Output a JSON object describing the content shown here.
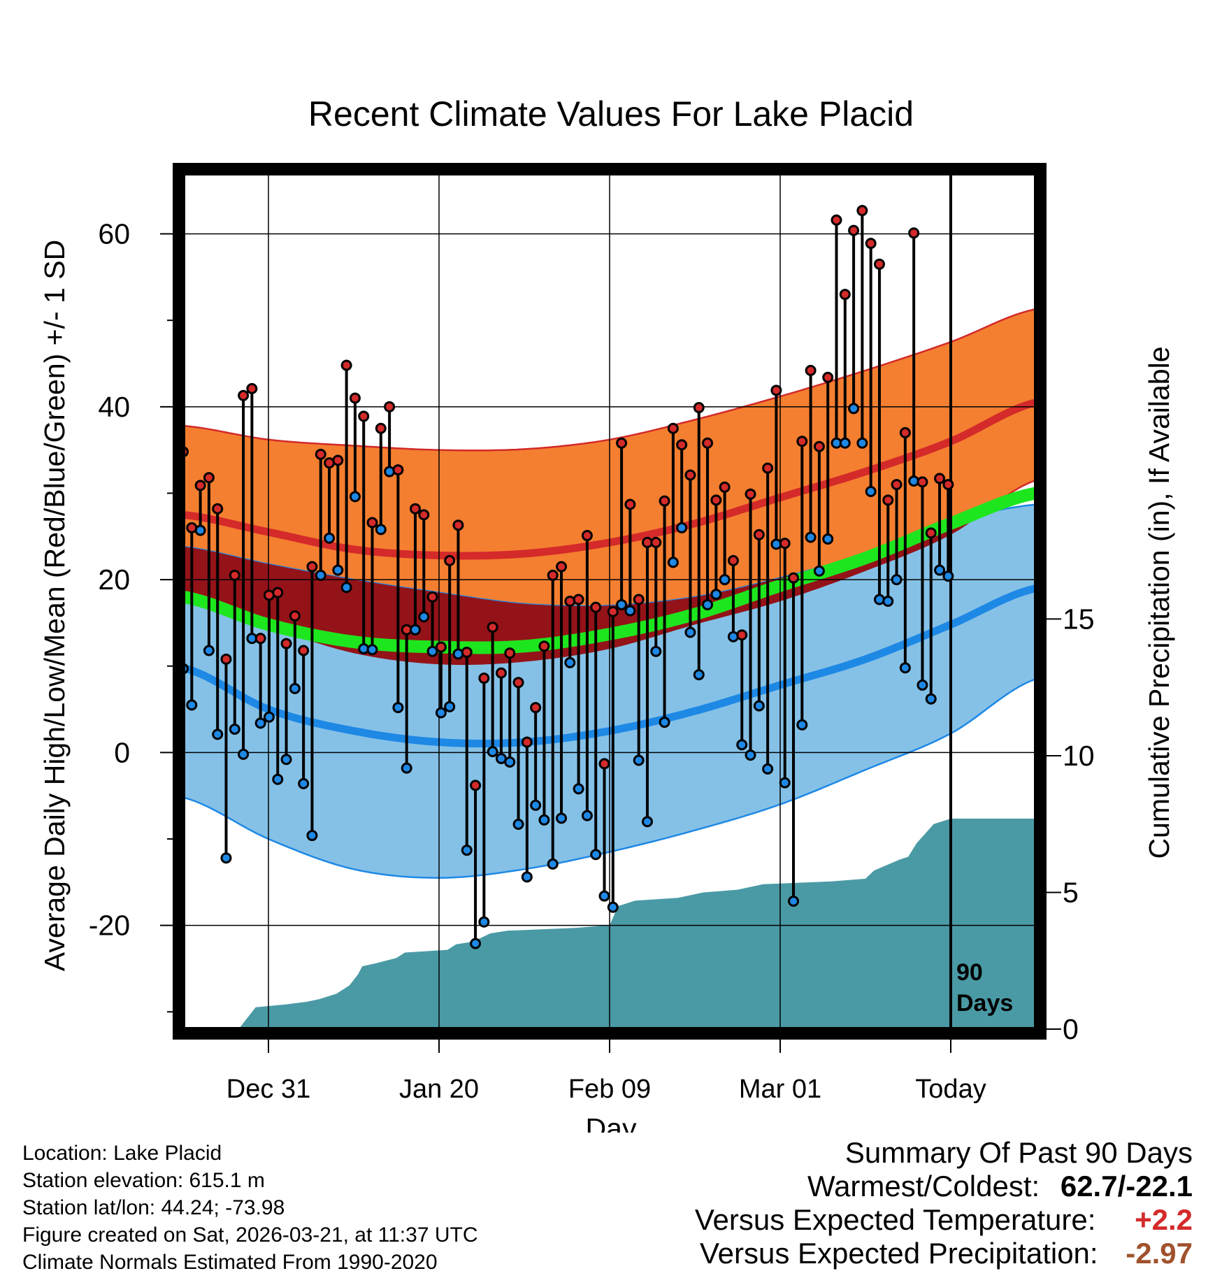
{
  "chart_data": {
    "type": "line",
    "title": "Recent Climate Values For Lake Placid",
    "xlabel": "Day",
    "ylabel": "Average Daily High/Low/Mean (Red/Blue/Green) +/- 1 SD",
    "y2label": "Cumulative Precipitation (in), If Available",
    "ylim": [
      -32,
      67
    ],
    "y2lim": [
      0,
      31.3
    ],
    "yticks": [
      "60",
      "40",
      "20",
      "0",
      "-20"
    ],
    "y2ticks": [
      "15",
      "10",
      "5",
      "0"
    ],
    "xlim": [
      0,
      100
    ],
    "x_ticks": [
      {
        "x": 10,
        "label": "Dec 31"
      },
      {
        "x": 30,
        "label": "Jan 20"
      },
      {
        "x": 50,
        "label": "Feb 09"
      },
      {
        "x": 70,
        "label": "Mar 01"
      },
      {
        "x": 90,
        "label": "Today"
      }
    ],
    "today_x": 90,
    "today_label_1": "90",
    "today_label_2": "Days",
    "normals": {
      "x": [
        0,
        10,
        20,
        30,
        40,
        50,
        60,
        70,
        80,
        90,
        100
      ],
      "high_mean": [
        27.5,
        25.5,
        23.5,
        22.8,
        23.0,
        24.3,
        26.5,
        29.5,
        32.5,
        36.0,
        40.5
      ],
      "high_upper": [
        37.8,
        36.2,
        35.5,
        35.0,
        35.1,
        36.2,
        38.5,
        41.2,
        44.2,
        47.5,
        51.3
      ],
      "high_lower": [
        17.5,
        14.5,
        11.5,
        10.2,
        10.5,
        12.0,
        14.8,
        17.5,
        21.0,
        25.2,
        31.5
      ],
      "low_mean": [
        9.8,
        5.0,
        2.5,
        1.2,
        1.2,
        2.5,
        4.8,
        7.8,
        10.8,
        14.8,
        19.0
      ],
      "low_upper": [
        23.8,
        21.8,
        20.0,
        18.5,
        17.2,
        17.0,
        18.0,
        20.2,
        23.0,
        26.7,
        28.7
      ],
      "low_lower": [
        -5.2,
        -10.0,
        -13.5,
        -14.5,
        -13.5,
        -11.5,
        -9.0,
        -6.0,
        -2.0,
        2.2,
        8.5
      ],
      "mean": [
        18.0,
        14.8,
        12.8,
        12.2,
        12.3,
        13.7,
        16.0,
        19.3,
        22.5,
        26.5,
        30.0
      ]
    },
    "series": [
      {
        "name": "High",
        "color": "#d42a2a",
        "values": [
          34.8,
          26,
          30.9,
          31.8,
          28.2,
          10.8,
          20.5,
          41.3,
          42.1,
          13.2,
          18.2,
          18.5,
          12.6,
          15.8,
          11.8,
          21.5,
          34.5,
          33.5,
          33.8,
          44.8,
          41,
          38.9,
          26.6,
          37.5,
          40,
          32.7,
          14.2,
          28.2,
          27.5,
          18,
          12.2,
          22.2,
          26.3,
          11.6,
          -3.8,
          8.6,
          14.5,
          9.2,
          11.5,
          8.1,
          1.2,
          5.2,
          12.3,
          20.5,
          21.5,
          17.5,
          17.7,
          25.1,
          16.8,
          -1.3,
          16.3,
          35.8,
          28.7,
          17.7,
          24.3,
          24.3,
          29.1,
          37.5,
          35.6,
          32.1,
          39.9,
          35.8,
          29.2,
          30.7,
          22.2,
          13.6,
          29.9,
          25.2,
          32.9,
          41.9,
          24.2,
          20.2,
          36,
          44.2,
          35.4,
          43.4,
          61.6,
          53,
          60.4,
          62.7,
          58.9,
          56.5,
          29.2,
          31,
          37,
          60.1,
          31.3,
          25.4,
          31.7,
          31
        ]
      },
      {
        "name": "Low",
        "color": "#1e88e5",
        "values": [
          9.7,
          5.5,
          25.7,
          11.8,
          2.1,
          -12.2,
          2.7,
          -0.2,
          13.2,
          3.4,
          4.1,
          -3.1,
          -0.8,
          7.4,
          -3.6,
          -9.6,
          20.5,
          24.8,
          21.1,
          19.1,
          29.6,
          12,
          11.9,
          25.8,
          32.5,
          5.2,
          -1.8,
          14.2,
          15.7,
          11.7,
          4.6,
          5.3,
          11.4,
          -11.3,
          -22.1,
          -19.6,
          0.1,
          -0.7,
          -1.1,
          -8.3,
          -14.4,
          -6.1,
          -7.8,
          -12.9,
          -7.6,
          10.4,
          -4.2,
          -7.3,
          -11.8,
          -16.6,
          -17.9,
          17.1,
          16.4,
          -0.9,
          -8,
          11.7,
          3.5,
          22,
          26,
          13.9,
          9,
          17.1,
          18.3,
          20,
          13.4,
          0.9,
          -0.3,
          5.4,
          -1.9,
          24.1,
          -3.5,
          -17.2,
          3.2,
          24.9,
          21,
          24.7,
          35.8,
          35.8,
          39.8,
          35.8,
          30.2,
          17.7,
          17.5,
          20,
          9.8,
          31.4,
          7.8,
          6.2,
          21.1,
          20.4
        ]
      },
      {
        "name": "Cumulative Precipitation",
        "color": "#4a9aa5",
        "x": [
          0,
          6.5,
          8.5,
          12,
          14.5,
          16,
          18,
          19.5,
          20.5,
          21,
          22.5,
          25,
          26,
          31,
          32,
          34,
          36,
          38,
          46,
          50,
          51,
          53,
          58,
          61,
          65,
          68,
          76,
          80,
          81,
          84,
          85,
          86,
          88,
          90,
          100
        ],
        "values": [
          0,
          0,
          0.8,
          0.9,
          1.0,
          1.1,
          1.3,
          1.6,
          2.0,
          2.3,
          2.4,
          2.6,
          2.8,
          2.9,
          3.1,
          3.2,
          3.5,
          3.6,
          3.7,
          3.8,
          4.5,
          4.7,
          4.8,
          5.0,
          5.1,
          5.3,
          5.4,
          5.5,
          5.8,
          6.2,
          6.3,
          6.8,
          7.5,
          7.7,
          7.7
        ]
      }
    ]
  },
  "footer": {
    "location": "Location: Lake Placid",
    "elevation": "Station elevation: 615.1 m",
    "latlon": "Station lat/lon: 44.24; -73.98",
    "created": "Figure created on Sat, 2026-03-21, at 11:37 UTC",
    "normals": "Climate Normals Estimated From 1990-2020"
  },
  "summary": {
    "heading": "Summary Of Past 90 Days",
    "warmest_label": "Warmest/Coldest:",
    "warmest_value": "62.7/-22.1",
    "temp_label": "Versus Expected Temperature:",
    "temp_value": "+2.2",
    "temp_color": "#d42a2a",
    "precip_label": "Versus Expected Precipitation:",
    "precip_value": "-2.97",
    "precip_color": "#a0522d"
  }
}
